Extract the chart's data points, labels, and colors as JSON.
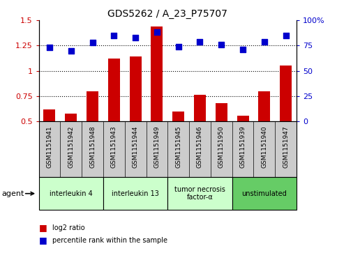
{
  "title": "GDS5262 / A_23_P75707",
  "samples": [
    "GSM1151941",
    "GSM1151942",
    "GSM1151948",
    "GSM1151943",
    "GSM1151944",
    "GSM1151949",
    "GSM1151945",
    "GSM1151946",
    "GSM1151950",
    "GSM1151939",
    "GSM1151940",
    "GSM1151947"
  ],
  "log2_ratio": [
    0.62,
    0.58,
    0.8,
    1.12,
    1.14,
    1.44,
    0.6,
    0.76,
    0.68,
    0.56,
    0.8,
    1.05
  ],
  "percentile_rank": [
    73,
    70,
    78,
    85,
    83,
    88,
    74,
    79,
    76,
    71,
    79,
    85
  ],
  "bar_color": "#CC0000",
  "dot_color": "#0000CC",
  "ylim_left": [
    0.5,
    1.5
  ],
  "ylim_right": [
    0,
    100
  ],
  "yticks_left": [
    0.5,
    0.75,
    1.0,
    1.25,
    1.5
  ],
  "yticks_right": [
    0,
    25,
    50,
    75,
    100
  ],
  "ytick_labels_left": [
    "0.5",
    "0.75",
    "1",
    "1.25",
    "1.5"
  ],
  "ytick_labels_right": [
    "0",
    "25",
    "50",
    "75",
    "100%"
  ],
  "hlines": [
    0.75,
    1.0,
    1.25
  ],
  "agent_groups": [
    {
      "label": "interleukin 4",
      "start": 0,
      "end": 3,
      "color": "#ccffcc"
    },
    {
      "label": "interleukin 13",
      "start": 3,
      "end": 6,
      "color": "#ccffcc"
    },
    {
      "label": "tumor necrosis\nfactor-α",
      "start": 6,
      "end": 9,
      "color": "#ccffcc"
    },
    {
      "label": "unstimulated",
      "start": 9,
      "end": 12,
      "color": "#66cc66"
    }
  ],
  "agent_label": "agent",
  "legend_bar_label": "log2 ratio",
  "legend_dot_label": "percentile rank within the sample",
  "bar_color_hex": "#CC0000",
  "dot_color_hex": "#0000CC",
  "tick_label_color_left": "#CC0000",
  "tick_label_color_right": "#0000CC",
  "sample_box_color": "#cccccc",
  "title_fontsize": 10,
  "tick_fontsize": 8,
  "sample_fontsize": 6.5,
  "agent_fontsize": 8,
  "legend_fontsize": 8,
  "bar_width": 0.55,
  "dot_size": 35
}
